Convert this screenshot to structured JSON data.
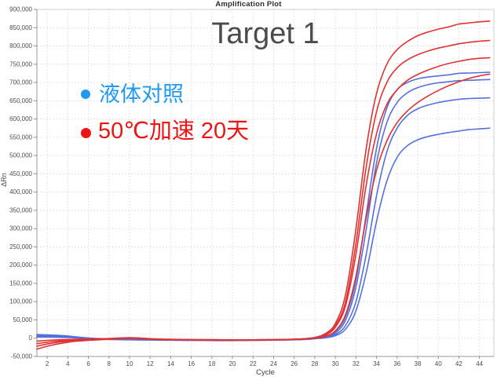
{
  "chart_data": {
    "type": "line",
    "title": "Amplification Plot",
    "annotation": "Target 1",
    "xlabel": "Cycle",
    "ylabel": "ΔRn",
    "xlim": [
      1,
      45.4
    ],
    "ylim": [
      -50000,
      900000
    ],
    "x_ticks": [
      2,
      4,
      6,
      8,
      10,
      12,
      14,
      16,
      18,
      20,
      22,
      24,
      26,
      28,
      30,
      32,
      34,
      36,
      38,
      40,
      42,
      44
    ],
    "y_ticks": {
      "min": -50000,
      "max": 900000,
      "step": 50000
    },
    "grid": "dotted",
    "legend_position": "upper-left-inside",
    "legend": [
      {
        "label": "液体对照",
        "color": "#1e9af0"
      },
      {
        "label": "50℃加速 20天",
        "color": "#ee1414"
      }
    ],
    "x": [
      1,
      2,
      3,
      4,
      5,
      6,
      7,
      8,
      9,
      10,
      11,
      12,
      13,
      14,
      15,
      16,
      17,
      18,
      19,
      20,
      21,
      22,
      23,
      24,
      25,
      26,
      27,
      28,
      29,
      30,
      31,
      32,
      33,
      34,
      35,
      36,
      37,
      38,
      39,
      40,
      41,
      42,
      43,
      44,
      45
    ],
    "series": [
      {
        "name": "液体对照-1",
        "group": "液体对照",
        "color": "#5470dd",
        "values": [
          10000,
          9000,
          8000,
          6000,
          3000,
          500,
          -1000,
          -2000,
          -2500,
          -3000,
          -3500,
          -4000,
          -4500,
          -4500,
          -5000,
          -5000,
          -5000,
          -5500,
          -5500,
          -5500,
          -5500,
          -5000,
          -5000,
          -4500,
          -4000,
          -3500,
          -2000,
          1000,
          4000,
          18000,
          60000,
          160000,
          340000,
          520000,
          630000,
          680000,
          700000,
          710000,
          715000,
          718000,
          721000,
          725000,
          726000,
          727000,
          728000
        ]
      },
      {
        "name": "液体对照-2",
        "group": "液体对照",
        "color": "#5470dd",
        "values": [
          7000,
          6500,
          6000,
          4500,
          2000,
          0,
          -1500,
          -2500,
          -3000,
          -3500,
          -4000,
          -4500,
          -4500,
          -5000,
          -5000,
          -5500,
          -5500,
          -5500,
          -6000,
          -6000,
          -5500,
          -5500,
          -5000,
          -5000,
          -4500,
          -4000,
          -2500,
          500,
          3000,
          14000,
          50000,
          140000,
          300000,
          480000,
          590000,
          645000,
          672000,
          686000,
          694000,
          699000,
          702000,
          705000,
          706000,
          707000,
          708000
        ]
      },
      {
        "name": "液体对照-3",
        "group": "液体对照",
        "color": "#5470dd",
        "values": [
          5000,
          4500,
          4000,
          3000,
          1500,
          -500,
          -2000,
          -3000,
          -3500,
          -4000,
          -4500,
          -4500,
          -5000,
          -5000,
          -5500,
          -5500,
          -6000,
          -6000,
          -6000,
          -6000,
          -6000,
          -5500,
          -5500,
          -5000,
          -4500,
          -4000,
          -3000,
          -500,
          2000,
          10000,
          35000,
          100000,
          230000,
          390000,
          510000,
          575000,
          610000,
          628000,
          638000,
          645000,
          650000,
          654000,
          656000,
          657000,
          658000
        ]
      },
      {
        "name": "液体对照-4",
        "group": "液体对照",
        "color": "#5470dd",
        "values": [
          3000,
          3000,
          2500,
          2000,
          500,
          -1000,
          -2500,
          -3500,
          -4000,
          -4500,
          -5000,
          -5000,
          -5500,
          -5500,
          -6000,
          -6000,
          -6000,
          -6500,
          -6500,
          -6500,
          -6000,
          -6000,
          -5500,
          -5500,
          -5000,
          -4500,
          -3500,
          -1500,
          1000,
          7000,
          25000,
          75000,
          180000,
          320000,
          430000,
          495000,
          527000,
          543000,
          552000,
          558000,
          563000,
          567000,
          571000,
          573000,
          575000
        ]
      },
      {
        "name": "50℃加速20天-1",
        "group": "50℃加速 20天",
        "color": "#e03232",
        "values": [
          -8000,
          -6000,
          -4500,
          -3500,
          -3000,
          -2500,
          -2000,
          -1000,
          500,
          1500,
          500,
          -1500,
          -2500,
          -3000,
          -3500,
          -4000,
          -4000,
          -4000,
          -4500,
          -4500,
          -5000,
          -4500,
          -4000,
          -4000,
          -3500,
          -3000,
          -1500,
          2000,
          12000,
          40000,
          120000,
          300000,
          520000,
          670000,
          750000,
          790000,
          812000,
          828000,
          838000,
          846000,
          852000,
          860000,
          863000,
          866000,
          868000
        ]
      },
      {
        "name": "50℃加速20天-2",
        "group": "50℃加速 20天",
        "color": "#e03232",
        "values": [
          -15000,
          -11000,
          -8000,
          -6000,
          -4500,
          -3500,
          -2500,
          -1500,
          0,
          1000,
          0,
          -2000,
          -3000,
          -3500,
          -4000,
          -4000,
          -4500,
          -4500,
          -4500,
          -5000,
          -5000,
          -4500,
          -4500,
          -4000,
          -3500,
          -3000,
          -1500,
          1500,
          10000,
          35000,
          100000,
          260000,
          470000,
          620000,
          700000,
          740000,
          762000,
          776000,
          786000,
          794000,
          800000,
          806000,
          810000,
          813000,
          815000
        ]
      },
      {
        "name": "50℃加速20天-3",
        "group": "50℃加速 20天",
        "color": "#e03232",
        "values": [
          -22000,
          -16000,
          -11500,
          -8000,
          -6000,
          -4500,
          -3500,
          -2000,
          -500,
          500,
          -500,
          -2500,
          -3500,
          -4000,
          -4000,
          -4500,
          -4500,
          -5000,
          -5000,
          -5000,
          -5000,
          -5000,
          -4500,
          -4500,
          -4000,
          -3000,
          -2000,
          1000,
          8000,
          30000,
          90000,
          230000,
          420000,
          560000,
          640000,
          680000,
          706000,
          722000,
          734000,
          744000,
          752000,
          758000,
          763000,
          766000,
          768000
        ]
      },
      {
        "name": "50℃加速20天-4",
        "group": "50℃加速 20天",
        "color": "#e03232",
        "values": [
          -30000,
          -22000,
          -16000,
          -11000,
          -8000,
          -6000,
          -4500,
          -3000,
          -1500,
          -500,
          -1500,
          -3000,
          -4000,
          -4500,
          -4500,
          -5000,
          -5000,
          -5000,
          -5500,
          -5500,
          -5500,
          -5000,
          -5000,
          -4500,
          -4000,
          -3500,
          -2500,
          0,
          5000,
          20000,
          65000,
          170000,
          330000,
          460000,
          540000,
          590000,
          622000,
          645000,
          663000,
          678000,
          691000,
          702000,
          711000,
          718000,
          723000
        ]
      }
    ],
    "style": {
      "grid_color": "#dadada",
      "axis_color": "#9a9a9a",
      "tick_label_color": "#4d4d4d",
      "title_color": "#2e2e2e",
      "annotation_color": "#4b4b4b",
      "background": "#ffffff",
      "line_width": 1.6
    }
  }
}
